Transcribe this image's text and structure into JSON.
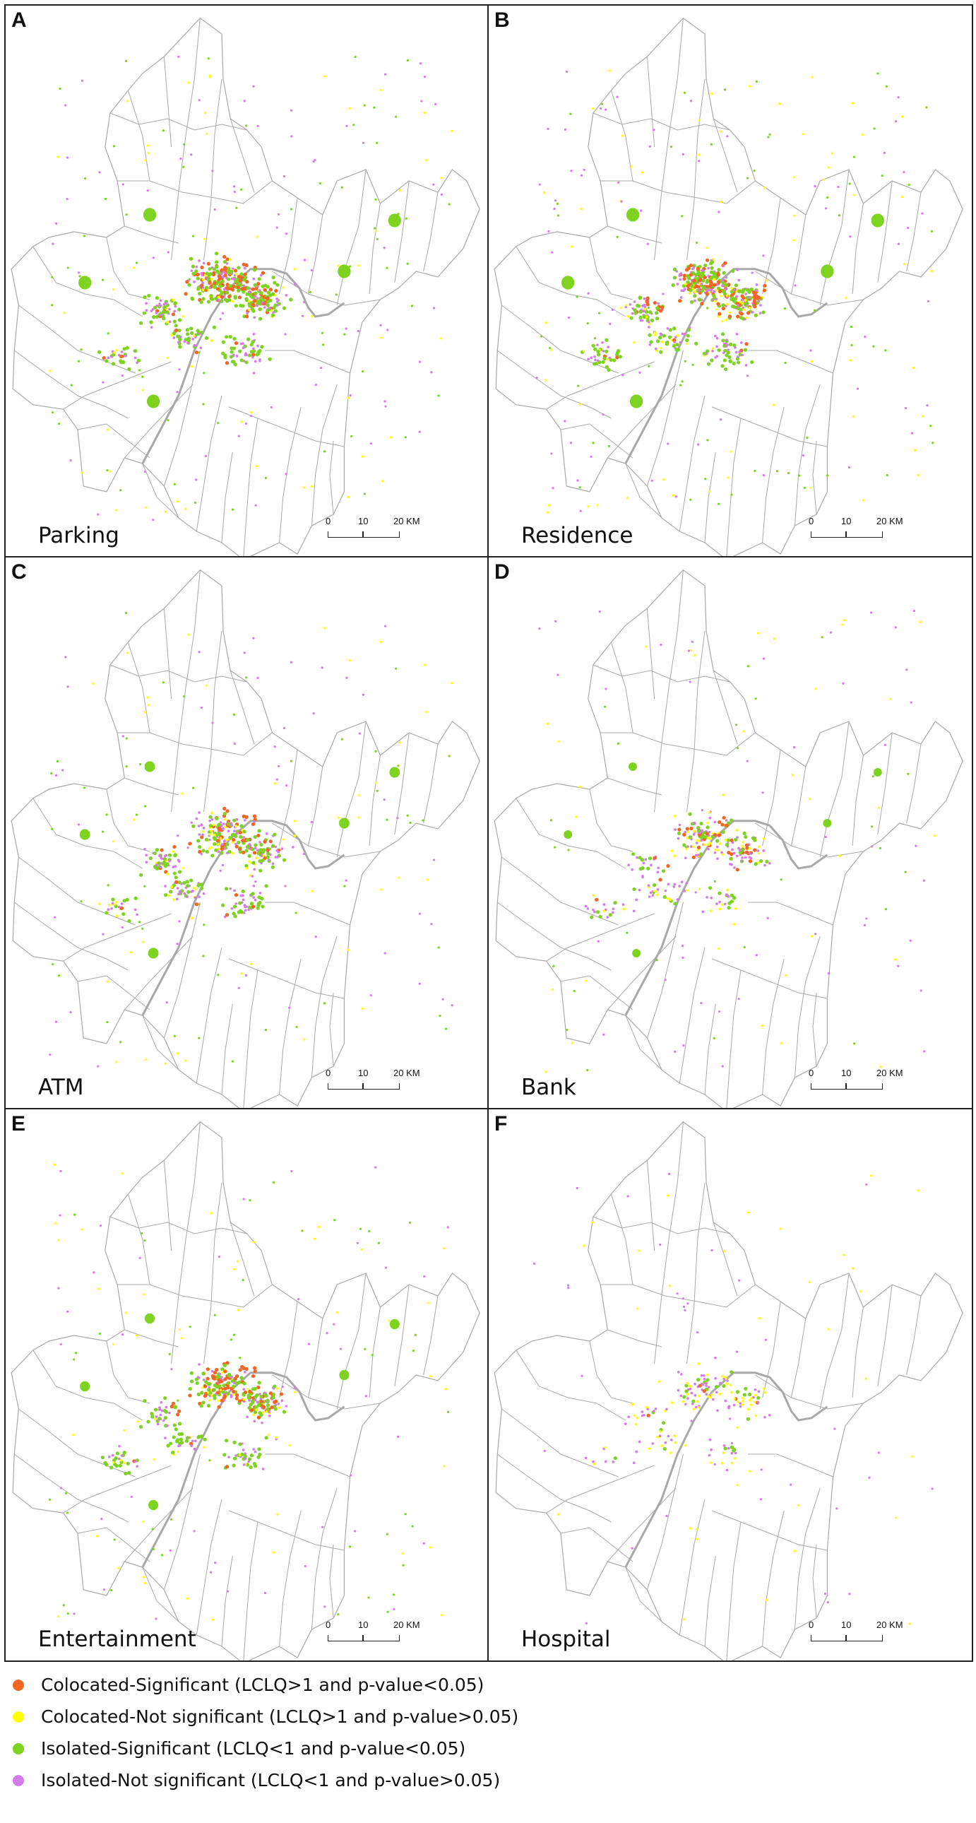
{
  "panels": [
    {
      "letter": "A",
      "name": "Parking",
      "mix": {
        "orange": 0.3,
        "yellow": 0.06,
        "green": 0.44,
        "purple": 0.2
      },
      "density": 1.0
    },
    {
      "letter": "B",
      "name": "Residence",
      "mix": {
        "orange": 0.3,
        "yellow": 0.1,
        "green": 0.3,
        "purple": 0.3
      },
      "density": 1.0
    },
    {
      "letter": "C",
      "name": "ATM",
      "mix": {
        "orange": 0.25,
        "yellow": 0.12,
        "green": 0.33,
        "purple": 0.3
      },
      "density": 0.75
    },
    {
      "letter": "D",
      "name": "Bank",
      "mix": {
        "orange": 0.22,
        "yellow": 0.18,
        "green": 0.25,
        "purple": 0.35
      },
      "density": 0.55
    },
    {
      "letter": "E",
      "name": "Entertainment",
      "mix": {
        "orange": 0.32,
        "yellow": 0.08,
        "green": 0.4,
        "purple": 0.2
      },
      "density": 0.7
    },
    {
      "letter": "F",
      "name": "Hospital",
      "mix": {
        "orange": 0.05,
        "yellow": 0.4,
        "green": 0.15,
        "purple": 0.4
      },
      "density": 0.35
    }
  ],
  "scale_bar": {
    "t0": "0",
    "t1": "10",
    "t2": "20 KM"
  },
  "legend": [
    {
      "color": "#f26522",
      "label": "Colocated-Significant (LCLQ>1 and p-value<0.05)"
    },
    {
      "color": "#ffff00",
      "label": "Colocated-Not significant (LCLQ>1 and p-value>0.05)"
    },
    {
      "color": "#7ed321",
      "label": "Isolated-Significant (LCLQ<1 and p-value<0.05)"
    },
    {
      "color": "#d57be8",
      "label": "Isolated-Not significant (LCLQ<1 and p-value>0.05)"
    }
  ],
  "colors": {
    "orange": "#f26522",
    "yellow": "#ffff00",
    "green": "#7ed321",
    "purple": "#d57be8",
    "boundary": "#a8a8a8"
  }
}
